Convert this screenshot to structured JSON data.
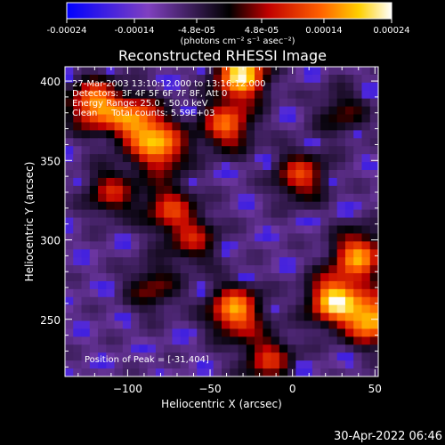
{
  "colorbar": {
    "ticks": [
      "-0.00024",
      "-0.00014",
      "-4.8e-05",
      "4.8e-05",
      "0.00014",
      "0.00024"
    ],
    "tick_values": [
      -0.00024,
      -0.00014,
      -4.8e-05,
      4.8e-05,
      0.00014,
      0.00024
    ],
    "range": [
      -0.00024,
      0.00024
    ],
    "units_label": "(photons cm⁻² s⁻¹ asec⁻²)",
    "colors": [
      "#0000ff",
      "#8040c0",
      "#000000",
      "#c00000",
      "#ff6000",
      "#ffd000",
      "#ffffff"
    ]
  },
  "chart_data": {
    "type": "heatmap",
    "title": "Reconstructed RHESSI Image",
    "xlabel": "Heliocentric X (arcsec)",
    "ylabel": "Heliocentric Y (arcsec)",
    "xlim": [
      -138,
      52
    ],
    "ylim": [
      214,
      409
    ],
    "xticks": [
      -100,
      -50,
      0,
      50
    ],
    "yticks": [
      250,
      300,
      350,
      400
    ],
    "annotations": [
      "27-Mar-2003 13:10:12.000 to 13:16:12.000",
      "Detectors: 3F 4F 5F 6F 7F 8F, Att 0",
      "Energy Range: 25.0 - 50.0 keV",
      "Clean     Total counts: 5.59E+03"
    ],
    "peak_label": "Position of Peak = [-31,404]",
    "peak": {
      "x": -31,
      "y": 404
    },
    "bright_sources": [
      {
        "x": 25,
        "y": 262,
        "level": 0.95
      },
      {
        "x": 48,
        "y": 250,
        "level": 0.9
      },
      {
        "x": 40,
        "y": 290,
        "level": 0.8
      },
      {
        "x": -31,
        "y": 404,
        "level": 1.0
      },
      {
        "x": -120,
        "y": 385,
        "level": 0.85
      },
      {
        "x": -95,
        "y": 375,
        "level": 0.75
      },
      {
        "x": -80,
        "y": 358,
        "level": 0.8
      },
      {
        "x": -40,
        "y": 372,
        "level": 0.7
      },
      {
        "x": -35,
        "y": 255,
        "level": 0.85
      },
      {
        "x": -75,
        "y": 320,
        "level": 0.55
      },
      {
        "x": 5,
        "y": 340,
        "level": 0.6
      },
      {
        "x": -110,
        "y": 330,
        "level": 0.5
      },
      {
        "x": -60,
        "y": 300,
        "level": 0.45
      },
      {
        "x": -15,
        "y": 225,
        "level": 0.55
      },
      {
        "x": -85,
        "y": 270,
        "level": 0.4
      },
      {
        "x": 30,
        "y": 380,
        "level": 0.35
      }
    ]
  },
  "footer": {
    "timestamp": "30-Apr-2022 06:46"
  }
}
